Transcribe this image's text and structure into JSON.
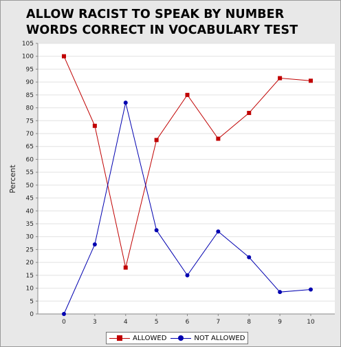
{
  "chart_data": {
    "type": "line",
    "title": "ALLOW RACIST TO SPEAK BY NUMBER WORDS CORRECT IN VOCABULARY TEST",
    "xlabel": "",
    "ylabel": "Percent",
    "categories": [
      "0",
      "3",
      "4",
      "5",
      "6",
      "7",
      "8",
      "9",
      "10"
    ],
    "ylim": [
      0,
      105
    ],
    "ytick_step": 5,
    "grid": true,
    "legend_position": "bottom",
    "series": [
      {
        "name": "ALLOWED",
        "color": "#c00000",
        "marker": "square",
        "values": [
          100,
          73,
          18,
          67.5,
          85,
          68,
          78,
          91.5,
          90.5
        ]
      },
      {
        "name": "NOT ALLOWED",
        "color": "#0000b0",
        "marker": "circle",
        "values": [
          0,
          27,
          82,
          32.5,
          15,
          32,
          22,
          8.5,
          9.5
        ]
      }
    ]
  }
}
